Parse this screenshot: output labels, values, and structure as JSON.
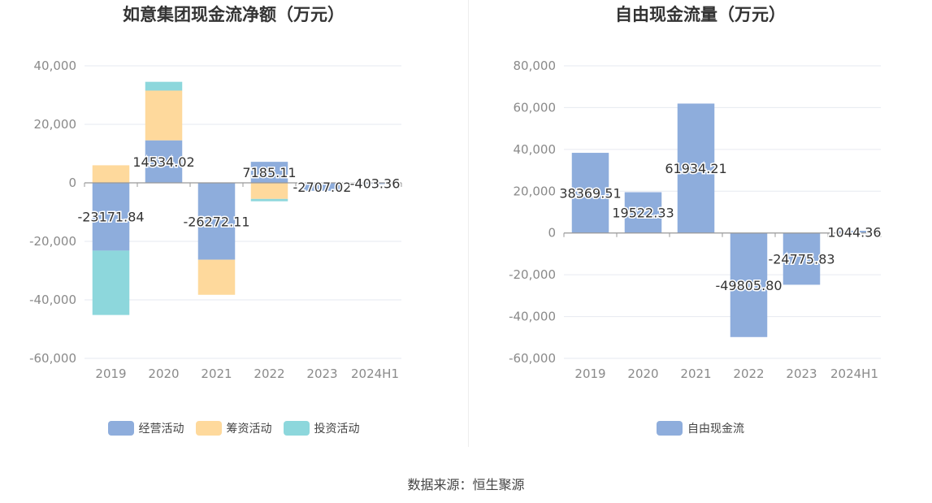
{
  "source_text": "数据来源：恒生聚源",
  "chart_data": [
    {
      "type": "bar",
      "stacked": true,
      "title": "如意集团现金流净额（万元）",
      "categories": [
        "2019",
        "2020",
        "2021",
        "2022",
        "2023",
        "2024H1"
      ],
      "ylim": [
        -60000,
        40000
      ],
      "yticks": [
        40000,
        20000,
        0,
        -20000,
        -40000,
        -60000
      ],
      "ytick_labels": [
        "40,000",
        "20,000",
        "0",
        "-20,000",
        "-40,000",
        "-60,000"
      ],
      "grid": true,
      "legend_position": "bottom",
      "series": [
        {
          "name": "经营活动",
          "color": "#8eaddc",
          "values": [
            -23171.84,
            14534.02,
            -26272.11,
            7185.11,
            -2707.02,
            -403.36
          ],
          "labels": [
            "-23171.84",
            "14534.02",
            "-26272.11",
            "7185.11",
            "-2707.02",
            "-403.36"
          ]
        },
        {
          "name": "筹资活动",
          "color": "#fed99c",
          "values": [
            6000,
            17000,
            -12000,
            -5500,
            0,
            0
          ]
        },
        {
          "name": "投资活动",
          "color": "#8dd7dc",
          "values": [
            -22000,
            3000,
            0,
            -800,
            0,
            0
          ]
        }
      ]
    },
    {
      "type": "bar",
      "title": "自由现金流量（万元）",
      "categories": [
        "2019",
        "2020",
        "2021",
        "2022",
        "2023",
        "2024H1"
      ],
      "ylim": [
        -60000,
        80000
      ],
      "yticks": [
        80000,
        60000,
        40000,
        20000,
        0,
        -20000,
        -40000,
        -60000
      ],
      "ytick_labels": [
        "80,000",
        "60,000",
        "40,000",
        "20,000",
        "0",
        "-20,000",
        "-40,000",
        "-60,000"
      ],
      "grid": true,
      "legend_position": "bottom",
      "series": [
        {
          "name": "自由现金流",
          "color": "#8eaddc",
          "values": [
            38369.51,
            19522.33,
            61934.21,
            -49805.8,
            -24775.83,
            1044.36
          ],
          "labels": [
            "38369.51",
            "19522.33",
            "61934.21",
            "-49805.80",
            "-24775.83",
            "1044.36"
          ]
        }
      ]
    }
  ]
}
